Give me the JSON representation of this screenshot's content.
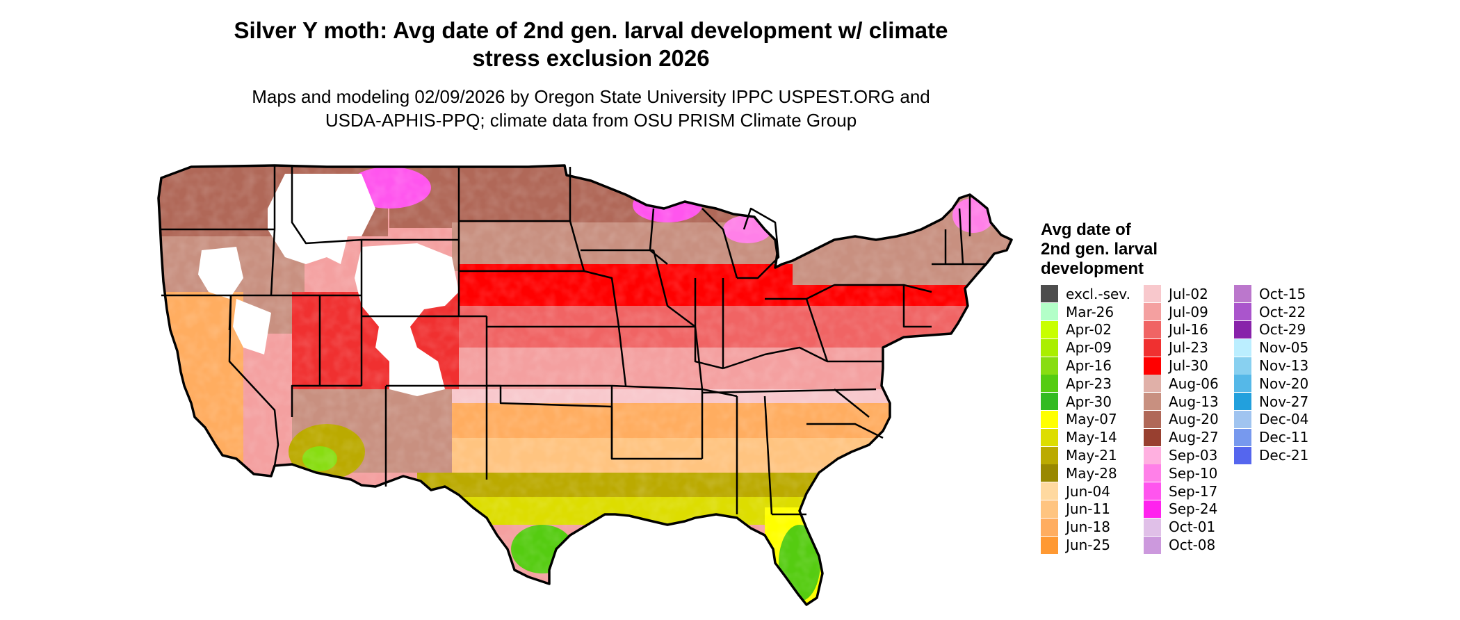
{
  "header": {
    "title_line1": "Silver Y moth: Avg date of 2nd gen. larval development w/ climate",
    "title_line2": "stress exclusion 2026",
    "subtitle_line1": "Maps and modeling 02/09/2026 by Oregon State University IPPC USPEST.ORG and",
    "subtitle_line2": "USDA-APHIS-PPQ; climate data from OSU PRISM Climate Group"
  },
  "legend": {
    "title_line1": "Avg date of",
    "title_line2": "2nd gen. larval",
    "title_line3": "development",
    "columns": [
      [
        {
          "label": "excl.-sev.",
          "color": "#4d4d4d"
        },
        {
          "label": "Mar-26",
          "color": "#b3ffc8"
        },
        {
          "label": "Apr-02",
          "color": "#c8ff00"
        },
        {
          "label": "Apr-09",
          "color": "#aaee00"
        },
        {
          "label": "Apr-16",
          "color": "#88dd11"
        },
        {
          "label": "Apr-23",
          "color": "#55cc11"
        },
        {
          "label": "Apr-30",
          "color": "#33bb22"
        },
        {
          "label": "May-07",
          "color": "#ffff00"
        },
        {
          "label": "May-14",
          "color": "#dddd00"
        },
        {
          "label": "May-21",
          "color": "#bbaa00"
        },
        {
          "label": "May-28",
          "color": "#998800"
        },
        {
          "label": "Jun-04",
          "color": "#ffd9a0"
        },
        {
          "label": "Jun-11",
          "color": "#ffc480"
        },
        {
          "label": "Jun-18",
          "color": "#ffad60"
        },
        {
          "label": "Jun-25",
          "color": "#ff9933"
        }
      ],
      [
        {
          "label": "Jul-02",
          "color": "#f8c8cc"
        },
        {
          "label": "Jul-09",
          "color": "#f4a0a0"
        },
        {
          "label": "Jul-16",
          "color": "#f06464"
        },
        {
          "label": "Jul-23",
          "color": "#f03030"
        },
        {
          "label": "Jul-30",
          "color": "#ff0000"
        },
        {
          "label": "Aug-06",
          "color": "#e0b0a8"
        },
        {
          "label": "Aug-13",
          "color": "#c89080"
        },
        {
          "label": "Aug-20",
          "color": "#b06858"
        },
        {
          "label": "Aug-27",
          "color": "#984030"
        },
        {
          "label": "Sep-03",
          "color": "#ffb0e0"
        },
        {
          "label": "Sep-10",
          "color": "#ff80e8"
        },
        {
          "label": "Sep-17",
          "color": "#ff55ee"
        },
        {
          "label": "Sep-24",
          "color": "#ff22ee"
        },
        {
          "label": "Oct-01",
          "color": "#e0c0e8"
        },
        {
          "label": "Oct-08",
          "color": "#cc99dd"
        }
      ],
      [
        {
          "label": "Oct-15",
          "color": "#bb77cc"
        },
        {
          "label": "Oct-22",
          "color": "#aa55cc"
        },
        {
          "label": "Oct-29",
          "color": "#8822aa"
        },
        {
          "label": "Nov-05",
          "color": "#bbeeff"
        },
        {
          "label": "Nov-13",
          "color": "#88d0f0"
        },
        {
          "label": "Nov-20",
          "color": "#55b8e8"
        },
        {
          "label": "Nov-27",
          "color": "#22a0dd"
        },
        {
          "label": "Dec-04",
          "color": "#a0c4f0"
        },
        {
          "label": "Dec-11",
          "color": "#7799ee"
        },
        {
          "label": "Dec-21",
          "color": "#5566ee"
        }
      ]
    ]
  },
  "map": {
    "outline_color": "#000000",
    "background_exclusion_color": "#ffffff"
  }
}
